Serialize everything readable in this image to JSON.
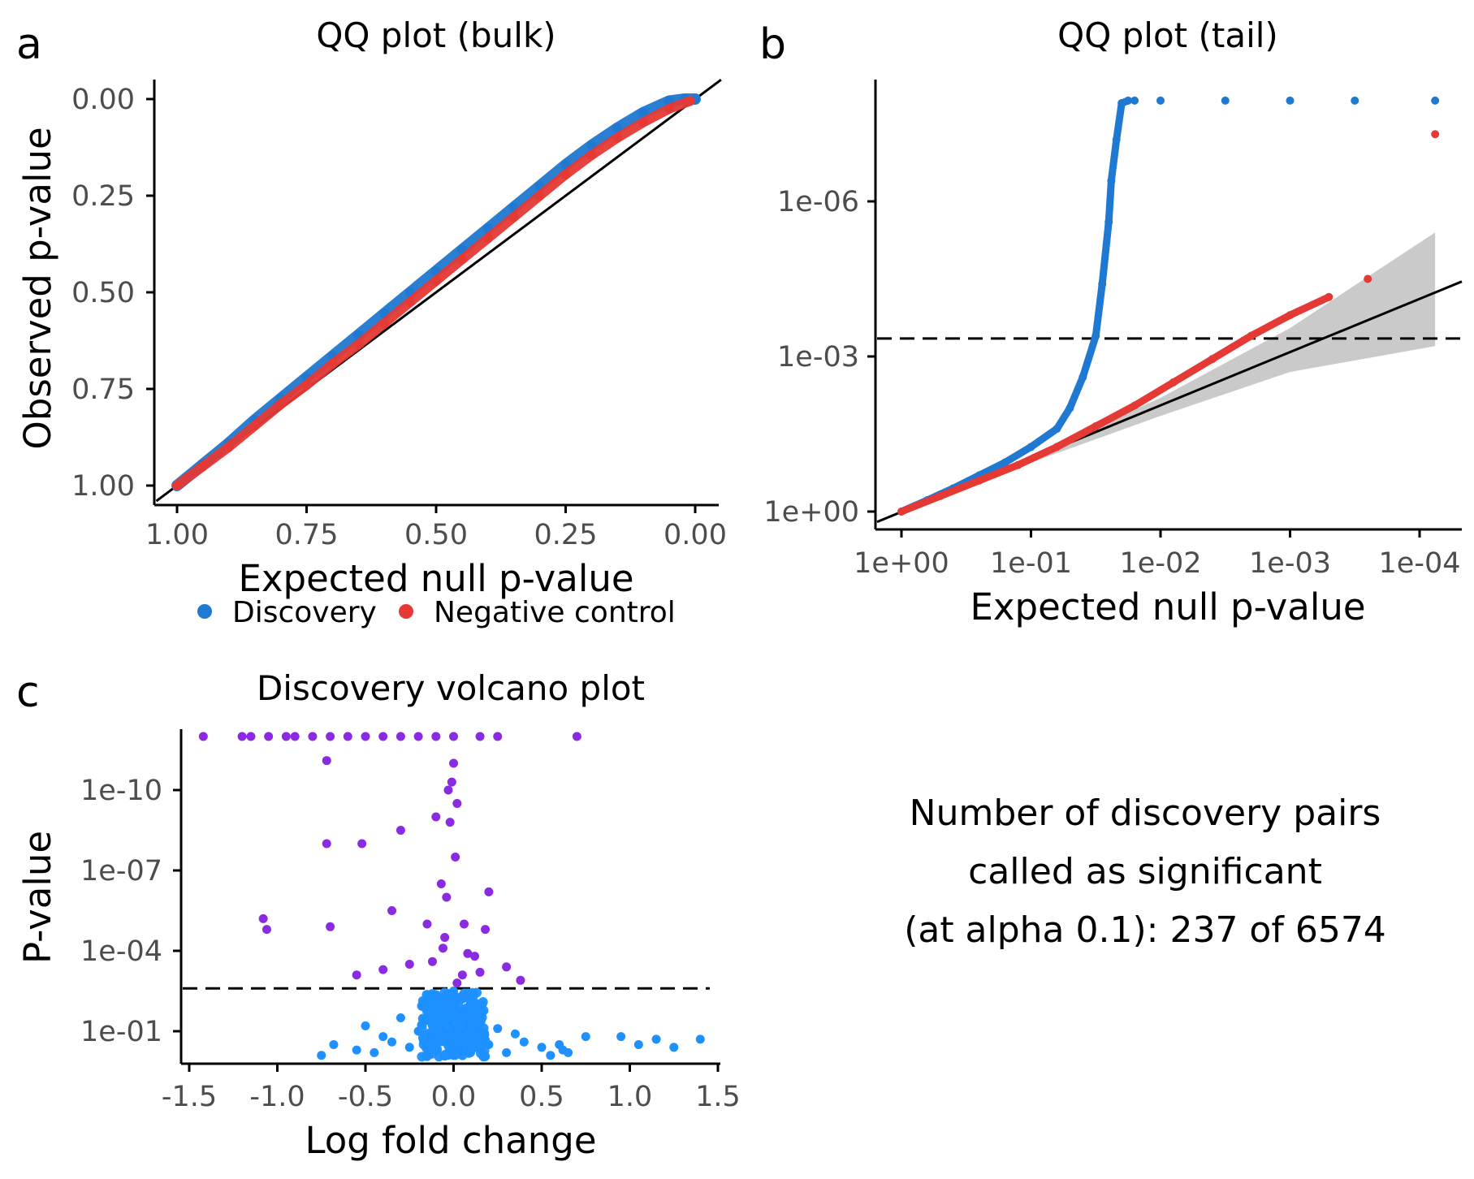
{
  "colors": {
    "discovery": "#1f78d1",
    "negative_control": "#e53935",
    "significant": "#8a2be2",
    "not_significant": "#1e90ff",
    "band": "#bdbdbd",
    "line": "#000000"
  },
  "panels": {
    "a": {
      "label": "a"
    },
    "b": {
      "label": "b"
    },
    "c": {
      "label": "c"
    }
  },
  "legend": {
    "items": [
      {
        "label": "Discovery",
        "color": "#1f78d1"
      },
      {
        "label": "Negative control",
        "color": "#e53935"
      }
    ]
  },
  "summary": {
    "line1": "Number of discovery pairs",
    "line2": "called as significant",
    "line3": "(at alpha 0.1): 237 of 6574"
  },
  "chart_data": [
    {
      "id": "qq_bulk",
      "type": "scatter",
      "title": "QQ plot (bulk)",
      "xlabel": "Expected null p-value",
      "ylabel": "Observed p-value",
      "xlim": [
        1.0,
        0.0
      ],
      "ylim": [
        1.0,
        0.0
      ],
      "x_ticks": [
        "1.00",
        "0.75",
        "0.50",
        "0.25",
        "0.00"
      ],
      "x_tick_values": [
        1.0,
        0.75,
        0.5,
        0.25,
        0.0
      ],
      "y_ticks": [
        "0.00",
        "0.25",
        "0.50",
        "0.75",
        "1.00"
      ],
      "y_tick_values": [
        0.0,
        0.25,
        0.5,
        0.75,
        1.0
      ],
      "reference_line": "y = x",
      "series": [
        {
          "name": "Discovery",
          "x": [
            1.0,
            0.95,
            0.9,
            0.85,
            0.8,
            0.75,
            0.7,
            0.65,
            0.6,
            0.55,
            0.5,
            0.45,
            0.4,
            0.35,
            0.3,
            0.25,
            0.2,
            0.15,
            0.1,
            0.05,
            0.02,
            0.0
          ],
          "y": [
            1.0,
            0.945,
            0.89,
            0.83,
            0.775,
            0.72,
            0.665,
            0.61,
            0.555,
            0.5,
            0.445,
            0.39,
            0.335,
            0.28,
            0.225,
            0.17,
            0.12,
            0.075,
            0.035,
            0.005,
            0.0,
            0.0
          ]
        },
        {
          "name": "Negative control",
          "x": [
            1.0,
            0.95,
            0.9,
            0.85,
            0.8,
            0.75,
            0.7,
            0.65,
            0.6,
            0.55,
            0.5,
            0.45,
            0.4,
            0.35,
            0.3,
            0.25,
            0.2,
            0.15,
            0.1,
            0.05,
            0.01
          ],
          "y": [
            1.0,
            0.95,
            0.9,
            0.845,
            0.79,
            0.74,
            0.685,
            0.635,
            0.58,
            0.525,
            0.47,
            0.415,
            0.36,
            0.305,
            0.25,
            0.195,
            0.145,
            0.1,
            0.06,
            0.025,
            0.005
          ]
        }
      ]
    },
    {
      "id": "qq_tail",
      "type": "scatter",
      "title": "QQ plot (tail)",
      "xlabel": "Expected null p-value",
      "ylabel": "",
      "x_scale": "-log10",
      "y_scale": "-log10",
      "x_ticks": [
        "1e+00",
        "1e-01",
        "1e-02",
        "1e-03",
        "1e-04"
      ],
      "x_tick_values": [
        1,
        0.1,
        0.01,
        0.001,
        0.0001
      ],
      "y_ticks": [
        "1e+00",
        "1e-03",
        "1e-06"
      ],
      "y_tick_values": [
        1,
        0.001,
        1e-06
      ],
      "xlim_neglog10": [
        -0.05,
        4.2
      ],
      "ylim_neglog10": [
        -0.05,
        8.1
      ],
      "significance_threshold_p": 0.00045,
      "reference_line": "y = x",
      "confidence_band": {
        "x_neglog10": [
          0.0,
          1.0,
          2.0,
          3.0,
          4.12
        ],
        "lower_neglog10": [
          0.0,
          0.95,
          1.85,
          2.7,
          3.2
        ],
        "upper_neglog10": [
          0.0,
          1.05,
          2.2,
          3.55,
          5.4
        ]
      },
      "series": [
        {
          "name": "Discovery",
          "x_neglog10": [
            0.0,
            0.2,
            0.4,
            0.6,
            0.8,
            1.0,
            1.2,
            1.3,
            1.4,
            1.5,
            1.55,
            1.6,
            1.62,
            1.66,
            1.7,
            1.75,
            1.8,
            2.0,
            2.5,
            3.0,
            3.5,
            4.12
          ],
          "y_neglog10": [
            0.0,
            0.22,
            0.45,
            0.7,
            0.95,
            1.25,
            1.6,
            2.0,
            2.6,
            3.4,
            4.4,
            5.6,
            6.4,
            7.2,
            7.9,
            7.95,
            7.95,
            7.95,
            7.95,
            7.95,
            7.95,
            7.95
          ]
        },
        {
          "name": "Negative control",
          "x_neglog10": [
            0.0,
            0.3,
            0.6,
            0.9,
            1.2,
            1.5,
            1.8,
            2.1,
            2.4,
            2.7,
            3.0,
            3.3,
            3.6,
            4.12
          ],
          "y_neglog10": [
            0.0,
            0.3,
            0.6,
            0.9,
            1.25,
            1.65,
            2.05,
            2.5,
            2.95,
            3.4,
            3.8,
            4.15,
            4.5,
            7.3
          ]
        }
      ]
    },
    {
      "id": "volcano",
      "type": "scatter",
      "title": "Discovery volcano plot",
      "xlabel": "Log fold change",
      "ylabel": "P-value",
      "x_ticks": [
        "-1.5",
        "-1.0",
        "-0.5",
        "0.0",
        "0.5",
        "1.0",
        "1.5"
      ],
      "x_tick_values": [
        -1.5,
        -1.0,
        -0.5,
        0.0,
        0.5,
        1.0,
        1.5
      ],
      "y_ticks": [
        "1e-01",
        "1e-04",
        "1e-07",
        "1e-10"
      ],
      "y_tick_values": [
        0.1,
        0.0001,
        1e-07,
        1e-10
      ],
      "y_scale": "-log10",
      "xlim": [
        -1.55,
        1.55
      ],
      "ylim_neglog10": [
        0.0,
        12.5
      ],
      "significance_threshold_neglog10": 2.6,
      "series": [
        {
          "name": "Significant",
          "logfc": [
            -1.42,
            -1.2,
            -1.15,
            -1.05,
            -0.95,
            -0.9,
            -0.8,
            -0.7,
            -0.6,
            -0.5,
            -0.4,
            -0.3,
            -0.2,
            -0.1,
            0.0,
            0.15,
            0.25,
            0.7,
            -0.72,
            -0.72,
            -0.52,
            -0.3,
            -0.1,
            -0.03,
            0.0,
            -0.01,
            0.02,
            -0.02,
            0.01,
            -0.07,
            -0.04,
            0.06,
            -1.08,
            -1.06,
            -0.7,
            -0.35,
            -0.15,
            -0.05,
            0.18,
            0.2,
            0.08,
            0.12,
            -0.25,
            -0.4,
            -0.55,
            0.3,
            0.38,
            0.05,
            -0.12,
            0.15,
            -0.06,
            0.02
          ],
          "neglog10_p": [
            12.0,
            12.0,
            12.0,
            12.0,
            12.0,
            12.0,
            12.0,
            12.0,
            12.0,
            12.0,
            12.0,
            12.0,
            12.0,
            12.0,
            12.0,
            12.0,
            12.0,
            12.0,
            11.1,
            8.0,
            8.0,
            8.5,
            9.0,
            10.0,
            11.0,
            10.3,
            9.5,
            8.8,
            7.5,
            6.5,
            6.0,
            5.0,
            5.2,
            4.8,
            4.9,
            5.5,
            5.0,
            4.5,
            4.8,
            6.2,
            3.9,
            3.8,
            3.5,
            3.3,
            3.1,
            3.4,
            2.9,
            3.1,
            3.6,
            3.2,
            4.1,
            2.8
          ]
        },
        {
          "name": "Not significant",
          "logfc": [
            -0.75,
            -0.68,
            -0.55,
            -0.5,
            -0.45,
            -0.4,
            -0.35,
            -0.3,
            -0.25,
            -0.2,
            -0.15,
            -0.1,
            -0.05,
            0.0,
            0.05,
            0.1,
            0.15,
            0.2,
            0.25,
            0.3,
            0.35,
            0.4,
            0.5,
            0.55,
            0.6,
            0.62,
            0.65,
            0.75,
            0.95,
            1.05,
            1.15,
            1.25,
            1.4,
            0.0,
            -0.02,
            0.03,
            -0.08,
            0.09,
            0.0,
            0.01,
            -0.01,
            0.12,
            -0.12
          ],
          "neglog10_p": [
            0.1,
            0.5,
            0.3,
            1.2,
            0.2,
            0.8,
            0.6,
            1.5,
            0.4,
            1.0,
            2.0,
            0.3,
            1.8,
            0.1,
            2.2,
            0.7,
            1.4,
            0.5,
            1.1,
            0.2,
            0.9,
            0.6,
            0.4,
            0.1,
            0.5,
            0.3,
            0.2,
            0.8,
            0.8,
            0.5,
            0.7,
            0.4,
            0.7,
            0.4,
            0.9,
            1.3,
            0.6,
            1.0,
            2.5,
            1.7,
            0.2,
            0.8,
            1.2
          ]
        }
      ]
    }
  ]
}
